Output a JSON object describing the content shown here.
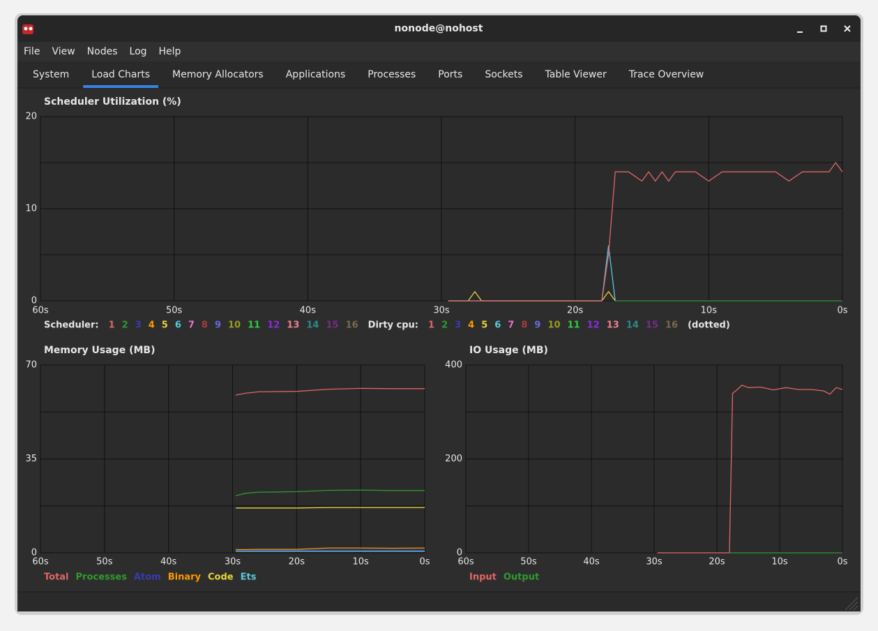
{
  "window": {
    "title": "nonode@nohost"
  },
  "menu": [
    "File",
    "View",
    "Nodes",
    "Log",
    "Help"
  ],
  "tabs": [
    "System",
    "Load Charts",
    "Memory Allocators",
    "Applications",
    "Processes",
    "Ports",
    "Sockets",
    "Table Viewer",
    "Trace Overview"
  ],
  "active_tab": 1,
  "chart_data": [
    {
      "type": "line",
      "title": "Scheduler Utilization (%)",
      "x": [
        -29.5,
        -28,
        -27.5,
        -27,
        -25,
        -22,
        -20,
        -18,
        -17.5,
        -17,
        -16,
        -15,
        -14.5,
        -14,
        -13.5,
        -13,
        -12.5,
        -12,
        -11,
        -10,
        -9,
        -8,
        -5,
        -4,
        -3,
        -1,
        -0.5,
        0
      ],
      "xlim": [
        -60,
        0
      ],
      "xticks": [
        {
          "value": -60,
          "label": "60s"
        },
        {
          "value": -50,
          "label": "50s"
        },
        {
          "value": -40,
          "label": "40s"
        },
        {
          "value": -30,
          "label": "30s"
        },
        {
          "value": -20,
          "label": "20s"
        },
        {
          "value": -10,
          "label": "10s"
        },
        {
          "value": 0,
          "label": "0s"
        }
      ],
      "ylim": [
        0,
        20
      ],
      "yticks": [
        0,
        10,
        20
      ],
      "minor_yticks": [
        5,
        15
      ],
      "grid": true,
      "series": [
        {
          "color": "#2e9a2e",
          "values": [
            null,
            null,
            null,
            null,
            null,
            null,
            null,
            null,
            null,
            0,
            0,
            0,
            0,
            0,
            0,
            0,
            0,
            0,
            0,
            0,
            0,
            0,
            0,
            0,
            0,
            0,
            0,
            0
          ]
        },
        {
          "color": "#e8d53a",
          "values": [
            0,
            0,
            1,
            0,
            0,
            0,
            0,
            0,
            1,
            0,
            null,
            null,
            null,
            null,
            null,
            null,
            null,
            null,
            null,
            null,
            null,
            null,
            null,
            null,
            null,
            null,
            null,
            null
          ]
        },
        {
          "color": "#5bc8dc",
          "values": [
            0,
            0,
            0,
            0,
            0,
            0,
            0,
            0,
            6,
            0,
            null,
            null,
            null,
            null,
            null,
            null,
            null,
            null,
            null,
            null,
            null,
            null,
            null,
            null,
            null,
            null,
            null,
            null
          ]
        },
        {
          "color": "#e06666",
          "values": [
            0,
            0,
            0,
            0,
            0,
            0,
            0,
            0,
            5,
            14,
            14,
            13,
            14,
            13,
            14,
            13,
            14,
            14,
            14,
            13,
            14,
            14,
            14,
            13,
            14,
            14,
            15,
            14
          ]
        }
      ],
      "legend_groups": [
        {
          "label": "Scheduler:",
          "items": [
            {
              "name": "1",
              "color": "#e06666"
            },
            {
              "name": "2",
              "color": "#2e9a2e"
            },
            {
              "name": "3",
              "color": "#3a3ab0"
            },
            {
              "name": "4",
              "color": "#ff9900"
            },
            {
              "name": "5",
              "color": "#e8d53a"
            },
            {
              "name": "6",
              "color": "#5bc8dc"
            },
            {
              "name": "7",
              "color": "#f06ec8"
            },
            {
              "name": "8",
              "color": "#a83c3c"
            },
            {
              "name": "9",
              "color": "#6a6ae0"
            },
            {
              "name": "10",
              "color": "#9a9a20"
            },
            {
              "name": "11",
              "color": "#2ecc40"
            },
            {
              "name": "12",
              "color": "#8a2be2"
            },
            {
              "name": "13",
              "color": "#f08090"
            },
            {
              "name": "14",
              "color": "#2a8a8a"
            },
            {
              "name": "15",
              "color": "#7a2a8a"
            },
            {
              "name": "16",
              "color": "#7a6a4a"
            }
          ]
        },
        {
          "label": "Dirty cpu:",
          "items": [
            {
              "name": "1",
              "color": "#e06666"
            },
            {
              "name": "2",
              "color": "#2e9a2e"
            },
            {
              "name": "3",
              "color": "#3a3ab0"
            },
            {
              "name": "4",
              "color": "#ff9900"
            },
            {
              "name": "5",
              "color": "#e8d53a"
            },
            {
              "name": "6",
              "color": "#5bc8dc"
            },
            {
              "name": "7",
              "color": "#f06ec8"
            },
            {
              "name": "8",
              "color": "#a83c3c"
            },
            {
              "name": "9",
              "color": "#6a6ae0"
            },
            {
              "name": "10",
              "color": "#9a9a20"
            },
            {
              "name": "11",
              "color": "#2ecc40"
            },
            {
              "name": "12",
              "color": "#8a2be2"
            },
            {
              "name": "13",
              "color": "#f08090"
            },
            {
              "name": "14",
              "color": "#2a8a8a"
            },
            {
              "name": "15",
              "color": "#7a2a8a"
            },
            {
              "name": "16",
              "color": "#7a6a4a"
            }
          ]
        }
      ],
      "legend_note": "(dotted)"
    },
    {
      "type": "line",
      "title": "Memory Usage (MB)",
      "x": [
        -29.5,
        -28,
        -26,
        -20,
        -15,
        -10,
        -5,
        0
      ],
      "xlim": [
        -60,
        0
      ],
      "xticks": [
        {
          "value": -60,
          "label": "60s"
        },
        {
          "value": -50,
          "label": "50s"
        },
        {
          "value": -40,
          "label": "40s"
        },
        {
          "value": -30,
          "label": "30s"
        },
        {
          "value": -20,
          "label": "20s"
        },
        {
          "value": -10,
          "label": "10s"
        },
        {
          "value": 0,
          "label": "0s"
        }
      ],
      "ylim": [
        0,
        70
      ],
      "yticks": [
        0,
        35,
        70
      ],
      "minor_yticks": [
        17.5,
        52.5
      ],
      "grid": true,
      "series": [
        {
          "name": "Total",
          "color": "#e06666",
          "values": [
            58.8,
            59.5,
            60,
            60.2,
            61,
            61.3,
            61.2,
            61.2
          ]
        },
        {
          "name": "Processes",
          "color": "#2e9a2e",
          "values": [
            21.3,
            22.2,
            22.6,
            22.8,
            23.3,
            23.4,
            23.2,
            23.2
          ]
        },
        {
          "name": "Atom",
          "color": "#3a3ab0",
          "values": [
            1,
            1,
            1,
            1,
            1,
            1,
            1,
            1
          ]
        },
        {
          "name": "Binary",
          "color": "#ff9900",
          "values": [
            1.2,
            1.2,
            1.3,
            1.3,
            1.8,
            1.8,
            1.7,
            1.8
          ]
        },
        {
          "name": "Code",
          "color": "#e8d53a",
          "values": [
            16.7,
            16.7,
            16.7,
            16.7,
            16.9,
            16.9,
            16.9,
            16.9
          ]
        },
        {
          "name": "Ets",
          "color": "#5bc8dc",
          "values": [
            0.6,
            0.6,
            0.6,
            0.6,
            0.6,
            0.6,
            0.6,
            0.6
          ]
        }
      ]
    },
    {
      "type": "line",
      "title": "IO Usage (MB)",
      "x": [
        -29.5,
        -18,
        -17.5,
        -17,
        -16,
        -15,
        -13,
        -11,
        -9,
        -7,
        -5,
        -3,
        -2,
        -1,
        0
      ],
      "xlim": [
        -60,
        0
      ],
      "xticks": [
        {
          "value": -60,
          "label": "60s"
        },
        {
          "value": -50,
          "label": "50s"
        },
        {
          "value": -40,
          "label": "40s"
        },
        {
          "value": -30,
          "label": "30s"
        },
        {
          "value": -20,
          "label": "20s"
        },
        {
          "value": -10,
          "label": "10s"
        },
        {
          "value": 0,
          "label": "0s"
        }
      ],
      "ylim": [
        0,
        400
      ],
      "yticks": [
        0,
        200,
        400
      ],
      "minor_yticks": [
        100,
        300
      ],
      "grid": true,
      "series": [
        {
          "name": "Input",
          "color": "#e06666",
          "values": [
            0,
            0,
            340,
            345,
            357,
            352,
            353,
            347,
            352,
            348,
            348,
            345,
            338,
            352,
            348
          ]
        },
        {
          "name": "Output",
          "color": "#2e9a2e",
          "values": [
            null,
            0,
            0,
            0,
            0,
            0,
            0,
            0,
            0,
            0,
            0,
            0,
            0,
            0,
            0
          ]
        }
      ]
    }
  ]
}
